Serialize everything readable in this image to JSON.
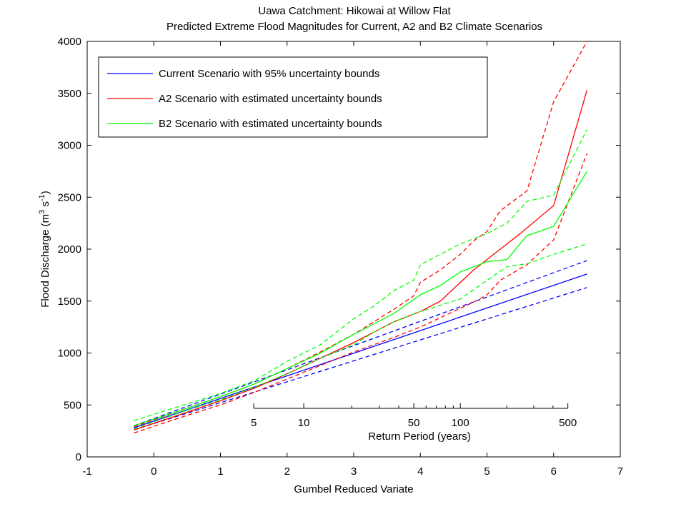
{
  "chart_data": {
    "type": "line",
    "title": "Uawa Catchment: Hikowai at Willow Flat",
    "subtitle": "Predicted Extreme Flood Magnitudes for Current, A2 and B2 Climate Scenarios",
    "xlabel": "Gumbel Reduced Variate",
    "ylabel_main": "Flood Discharge (m",
    "ylabel_sup1": "3",
    "ylabel_mid": " s",
    "ylabel_sup2": "-1",
    "ylabel_end": ")",
    "xlim": [
      -1,
      7
    ],
    "ylim": [
      0,
      4000
    ],
    "xticks": [
      -1,
      0,
      1,
      2,
      3,
      4,
      5,
      6,
      7
    ],
    "yticks": [
      0,
      500,
      1000,
      1500,
      2000,
      2500,
      3000,
      3500,
      4000
    ],
    "return_period_axis": {
      "label": "Return Period (years)",
      "ticks": [
        5,
        10,
        50,
        100,
        500
      ],
      "minor_ticks": [
        20,
        30,
        40,
        60,
        70,
        80,
        90,
        200,
        300,
        400
      ]
    },
    "legend": {
      "placement": "top-left",
      "entries": [
        {
          "label": "Current Scenario with 95% uncertainty bounds",
          "color": "#0000ff"
        },
        {
          "label": "A2 Scenario with estimated uncertainty bounds",
          "color": "#ff0000"
        },
        {
          "label": "B2 Scenario with estimated uncertainty bounds",
          "color": "#00ff00"
        }
      ]
    },
    "series": [
      {
        "name": "Current Scenario with 95% uncertainty bounds",
        "color": "#0000ff",
        "style": "solid",
        "x": [
          -0.3,
          6.5
        ],
        "y": [
          280,
          1760
        ]
      },
      {
        "color": "#0000ff",
        "style": "dashed",
        "x": [
          -0.3,
          6.5
        ],
        "y": [
          300,
          1890
        ]
      },
      {
        "color": "#0000ff",
        "style": "dashed",
        "x": [
          -0.3,
          6.5
        ],
        "y": [
          260,
          1630
        ]
      },
      {
        "name": "A2 Scenario with estimated uncertainty bounds",
        "color": "#ff0000",
        "style": "solid",
        "x": [
          -0.3,
          0.5,
          1.0,
          1.5,
          2.0,
          2.5,
          3.0,
          3.3,
          3.6,
          4.0,
          4.3,
          4.6,
          4.8,
          5.0,
          5.2,
          5.5,
          6.0,
          6.5
        ],
        "y": [
          260,
          430,
          540,
          660,
          800,
          950,
          1100,
          1200,
          1300,
          1400,
          1500,
          1680,
          1800,
          1900,
          2000,
          2150,
          2420,
          3530
        ]
      },
      {
        "color": "#ff0000",
        "style": "dashed",
        "x": [
          -0.3,
          0.5,
          1.0,
          1.5,
          2.0,
          2.5,
          3.0,
          3.3,
          3.6,
          3.9,
          4.0,
          4.3,
          4.6,
          4.8,
          5.0,
          5.2,
          5.6,
          6.0,
          6.5
        ],
        "y": [
          290,
          470,
          580,
          700,
          850,
          1010,
          1180,
          1300,
          1420,
          1550,
          1680,
          1800,
          1950,
          2080,
          2170,
          2370,
          2560,
          3420,
          4000
        ]
      },
      {
        "color": "#ff0000",
        "style": "dashed",
        "x": [
          -0.3,
          0.5,
          1.0,
          1.5,
          2.0,
          2.5,
          3.0,
          3.3,
          3.6,
          4.0,
          4.3,
          4.6,
          4.8,
          5.0,
          5.2,
          5.6,
          6.0,
          6.5
        ],
        "y": [
          230,
          400,
          500,
          620,
          750,
          880,
          1010,
          1080,
          1150,
          1250,
          1340,
          1430,
          1490,
          1560,
          1700,
          1850,
          2090,
          2920
        ]
      },
      {
        "name": "B2 Scenario with estimated uncertainty bounds",
        "color": "#00ff00",
        "style": "solid",
        "x": [
          -0.3,
          0.5,
          1.0,
          1.5,
          2.0,
          2.5,
          3.0,
          3.3,
          3.6,
          4.0,
          4.3,
          4.6,
          5.0,
          5.3,
          5.6,
          6.0,
          6.5
        ],
        "y": [
          300,
          470,
          580,
          700,
          850,
          1000,
          1180,
          1280,
          1380,
          1560,
          1650,
          1780,
          1880,
          1900,
          2130,
          2220,
          2750
        ]
      },
      {
        "color": "#00ff00",
        "style": "dashed",
        "x": [
          -0.3,
          0.5,
          1.0,
          1.5,
          2.0,
          2.5,
          3.0,
          3.3,
          3.6,
          3.9,
          4.0,
          4.3,
          4.6,
          5.0,
          5.3,
          5.6,
          6.0,
          6.5
        ],
        "y": [
          350,
          510,
          610,
          730,
          920,
          1080,
          1330,
          1450,
          1600,
          1700,
          1850,
          1950,
          2050,
          2150,
          2250,
          2460,
          2520,
          3150
        ]
      },
      {
        "color": "#00ff00",
        "style": "dashed",
        "x": [
          -0.3,
          0.5,
          1.0,
          1.5,
          2.0,
          2.5,
          3.0,
          3.3,
          3.6,
          4.0,
          4.3,
          4.6,
          5.0,
          5.3,
          5.6,
          6.0,
          6.5
        ],
        "y": [
          270,
          450,
          550,
          670,
          800,
          950,
          1080,
          1200,
          1300,
          1400,
          1460,
          1520,
          1700,
          1830,
          1860,
          1950,
          2050
        ]
      }
    ]
  }
}
